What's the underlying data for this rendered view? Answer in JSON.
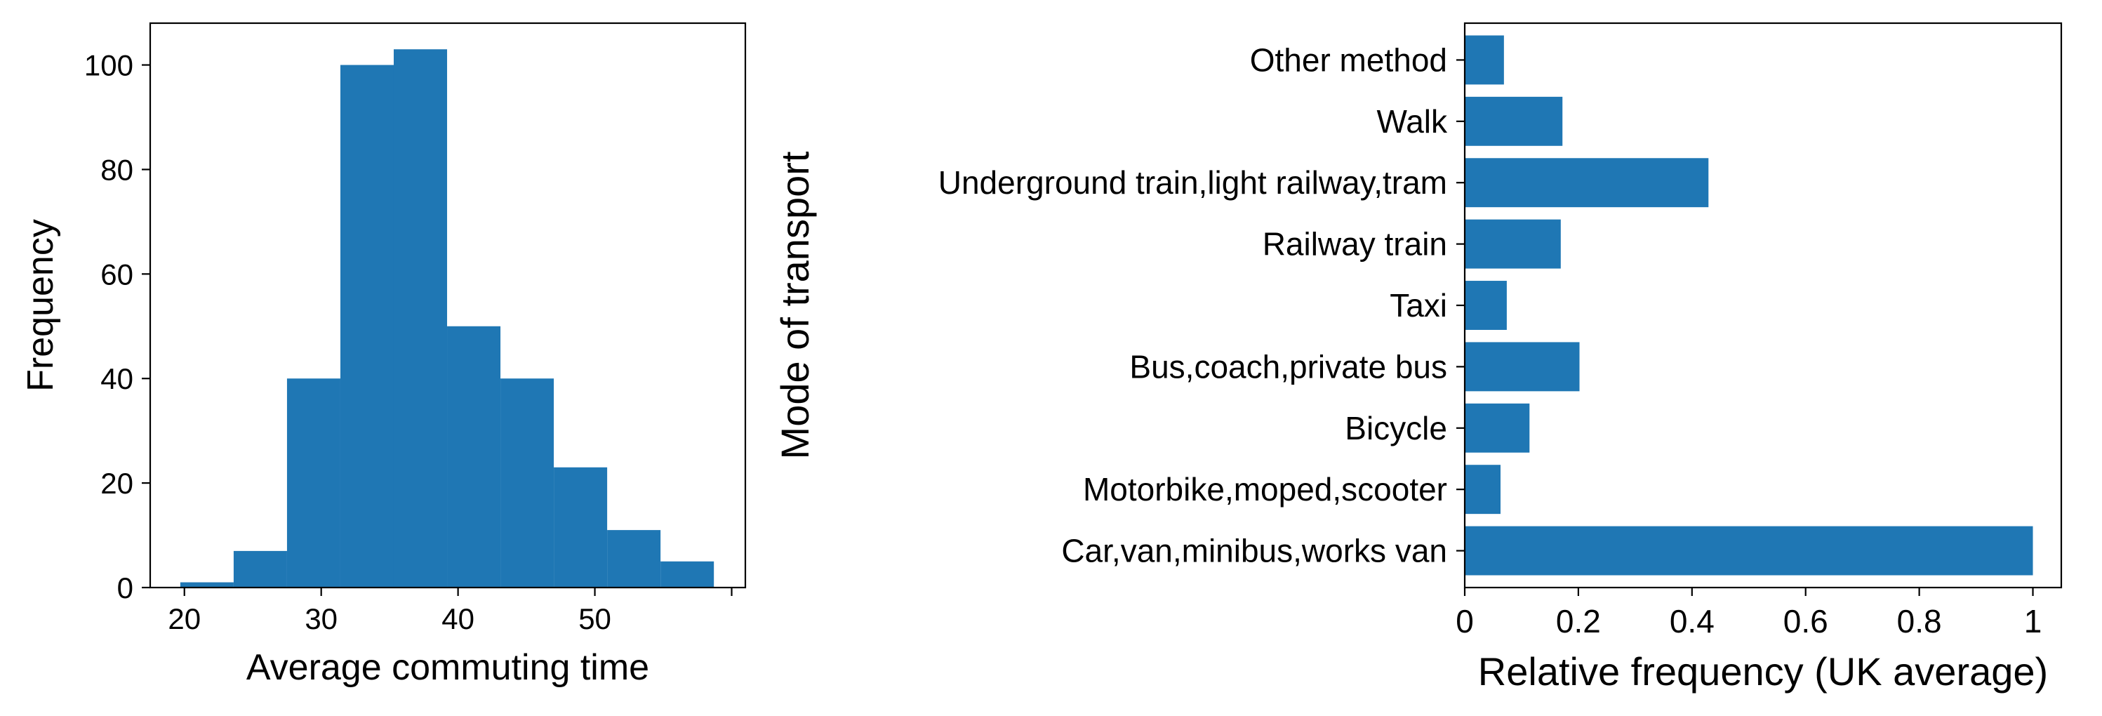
{
  "chart_data": [
    {
      "type": "bar",
      "subtype": "histogram",
      "title": "",
      "xlabel": "Average commuting time",
      "ylabel": "Frequency",
      "bin_edges": [
        19.7,
        23.6,
        27.5,
        31.4,
        35.3,
        39.2,
        43.1,
        47.0,
        50.9,
        54.8,
        58.7
      ],
      "values": [
        1,
        7,
        40,
        100,
        103,
        50,
        40,
        23,
        11,
        5
      ],
      "xlim": [
        17.5,
        61.0
      ],
      "ylim": [
        0,
        108
      ],
      "xticks": [
        20,
        30,
        40,
        50,
        60
      ],
      "xtick_labels": [
        "20",
        "30",
        "40",
        "50",
        ""
      ],
      "yticks": [
        0,
        20,
        40,
        60,
        80,
        100
      ],
      "ytick_labels": [
        "0",
        "20",
        "40",
        "60",
        "80",
        "100"
      ],
      "color": "#1f77b4",
      "grid": false
    },
    {
      "type": "bar",
      "orientation": "horizontal",
      "title": "",
      "xlabel": "Relative frequency (UK average)",
      "ylabel": "Mode of transport",
      "categories": [
        "Car,van,minibus,works van",
        "Motorbike,moped,scooter",
        "Bicycle",
        "Bus,coach,private bus",
        "Taxi",
        "Railway train",
        "Underground train,light railway,tram",
        "Walk",
        "Other method"
      ],
      "values": [
        1.0,
        0.063,
        0.114,
        0.202,
        0.074,
        0.169,
        0.429,
        0.172,
        0.069
      ],
      "xlim": [
        0,
        1.05
      ],
      "xticks": [
        0,
        0.2,
        0.4,
        0.6,
        0.8,
        1
      ],
      "xtick_labels": [
        "0",
        "0.2",
        "0.4",
        "0.6",
        "0.8",
        "1"
      ],
      "color": "#1f77b4",
      "grid": false
    }
  ]
}
